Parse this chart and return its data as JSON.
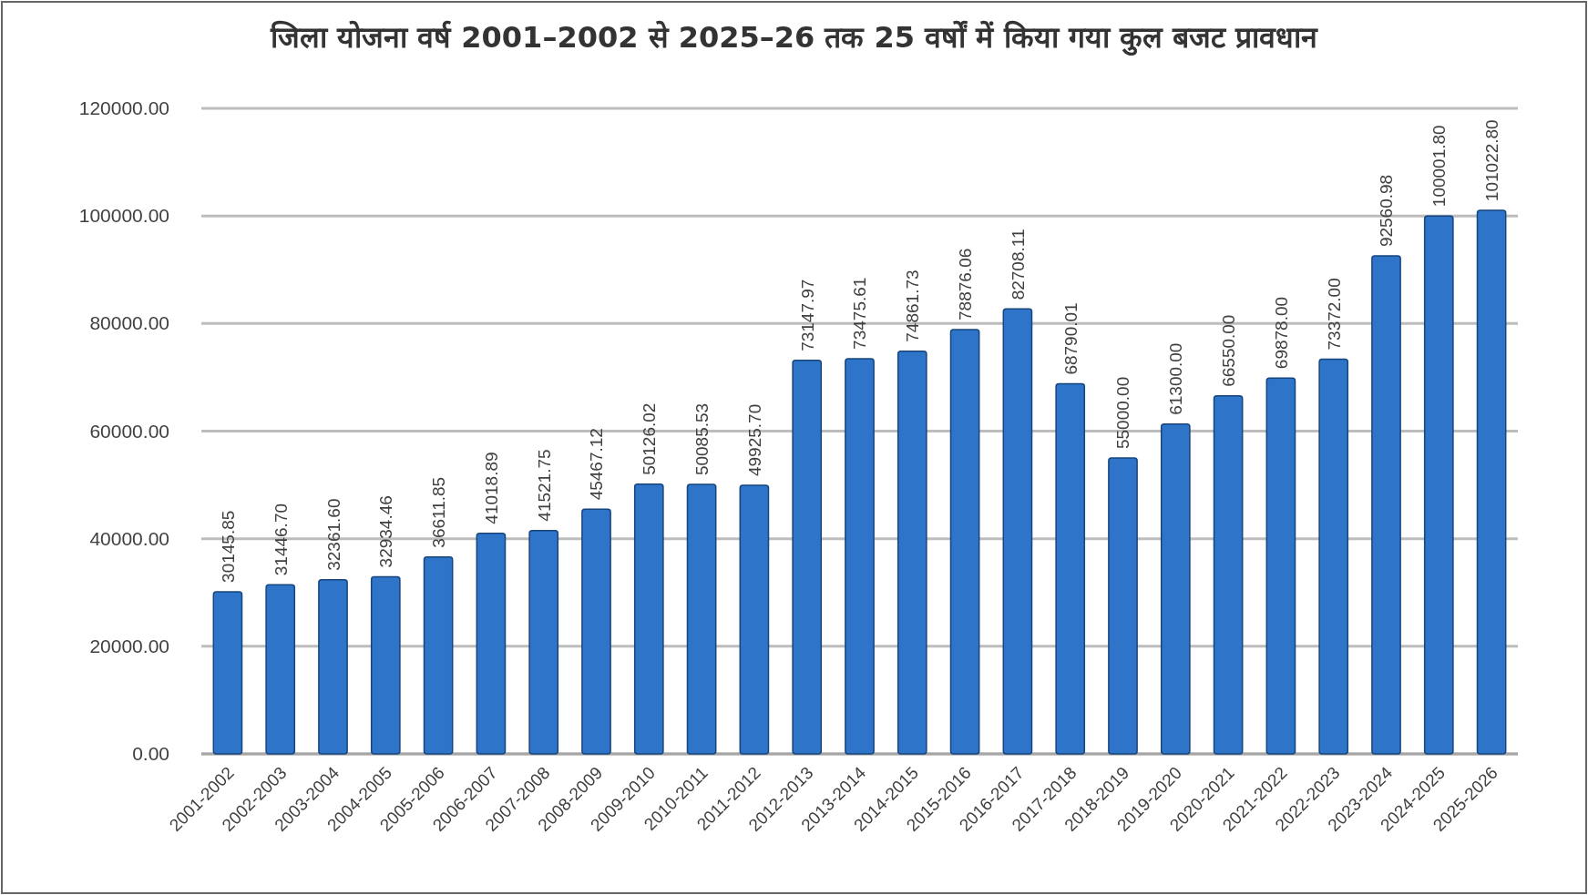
{
  "chart_data": {
    "type": "bar",
    "title": "जिला योजना वर्ष 2001–2002 से 2025–26 तक 25 वर्षों में किया गया कुल बजट प्रावधान",
    "categories": [
      "2001-2002",
      "2002-2003",
      "2003-2004",
      "2004-2005",
      "2005-2006",
      "2006-2007",
      "2007-2008",
      "2008-2009",
      "2009-2010",
      "2010-2011",
      "2011-2012",
      "2012-2013",
      "2013-2014",
      "2014-2015",
      "2015-2016",
      "2016-2017",
      "2017-2018",
      "2018-2019",
      "2019-2020",
      "2020-2021",
      "2021-2022",
      "2022-2023",
      "2023-2024",
      "2024-2025",
      "2025-2026"
    ],
    "values": [
      30145.85,
      31446.7,
      32361.6,
      32934.46,
      36611.85,
      41018.89,
      41521.75,
      45467.12,
      50126.02,
      50085.53,
      49925.7,
      73147.97,
      73475.61,
      74861.73,
      78876.06,
      82708.11,
      68790.01,
      55000.0,
      61300.0,
      66550.0,
      69878.0,
      73372.0,
      92560.98,
      100001.8,
      101022.8
    ],
    "value_labels": [
      "30145.85",
      "31446.70",
      "32361.60",
      "32934.46",
      "36611.85",
      "41018.89",
      "41521.75",
      "45467.12",
      "50126.02",
      "50085.53",
      "49925.70",
      "73147.97",
      "73475.61",
      "74861.73",
      "78876.06",
      "82708.11",
      "68790.01",
      "55000.00",
      "61300.00",
      "66550.00",
      "69878.00",
      "73372.00",
      "92560.98",
      "100001.80",
      "101022.80"
    ],
    "color": "#2e75c9",
    "ylim": [
      0,
      120000
    ],
    "yticks": [
      {
        "value": 0,
        "label": "0.00"
      },
      {
        "value": 20000,
        "label": "20000.00"
      },
      {
        "value": 40000,
        "label": "40000.00"
      },
      {
        "value": 60000,
        "label": "60000.00"
      },
      {
        "value": 80000,
        "label": "80000.00"
      },
      {
        "value": 100000,
        "label": "100000.00"
      },
      {
        "value": 120000,
        "label": "120000.00"
      }
    ],
    "grid": "y"
  }
}
